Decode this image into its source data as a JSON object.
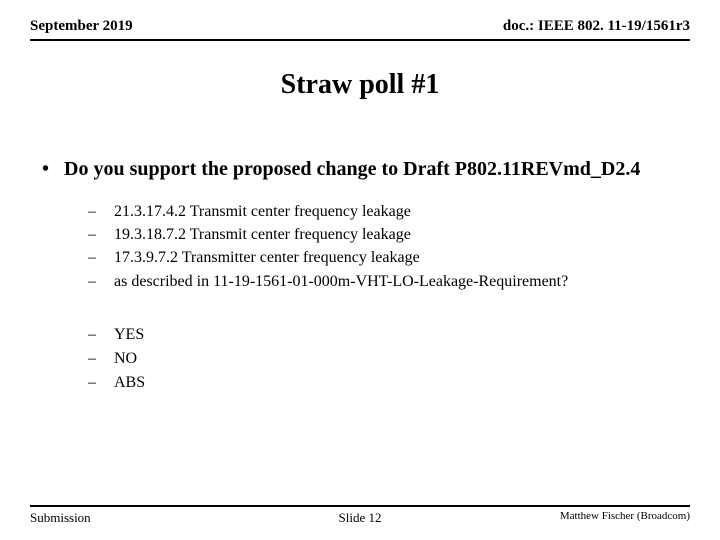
{
  "header": {
    "date": "September 2019",
    "doc_ref": "doc.: IEEE 802. 11-19/1561r3"
  },
  "title": "Straw poll #1",
  "main_bullet": "Do you support the proposed change to Draft P802.11REVmd_D2.4",
  "sub_items": [
    "21.3.17.4.2 Transmit center frequency leakage",
    "19.3.18.7.2  Transmit center frequency leakage",
    "17.3.9.7.2 Transmitter center frequency leakage",
    "as described in 11-19-1561-01-000m-VHT-LO-Leakage-Requirement?"
  ],
  "answers": [
    "YES",
    "NO",
    "ABS"
  ],
  "footer": {
    "left": "Submission",
    "center": "Slide 12",
    "right": "Matthew Fischer (Broadcom)"
  },
  "colors": {
    "background": "#ffffff",
    "text": "#000000",
    "rule": "#000000"
  }
}
